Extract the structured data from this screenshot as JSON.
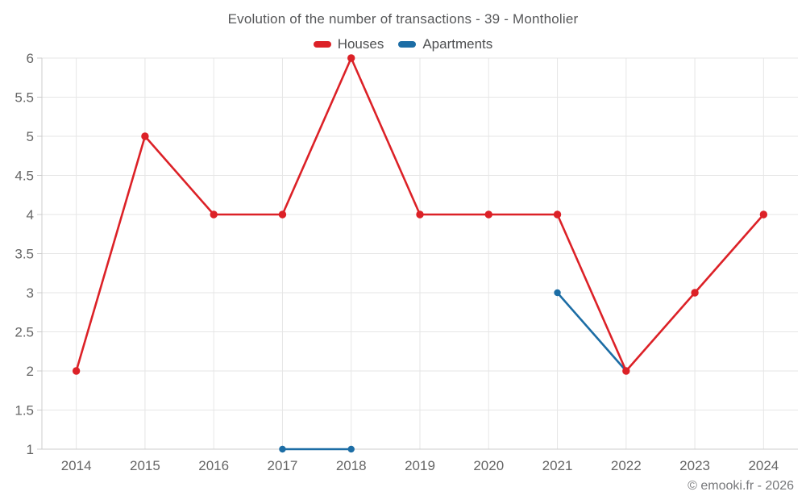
{
  "chart_data": {
    "type": "line",
    "title": "Evolution of the number of transactions - 39 - Montholier",
    "categories": [
      "2014",
      "2015",
      "2016",
      "2017",
      "2018",
      "2019",
      "2020",
      "2021",
      "2022",
      "2023",
      "2024"
    ],
    "series": [
      {
        "name": "Houses",
        "color": "#dc2127",
        "values": [
          2,
          5,
          4,
          4,
          6,
          4,
          4,
          4,
          2,
          3,
          4
        ]
      },
      {
        "name": "Apartments",
        "color": "#1c6da5",
        "values": [
          null,
          null,
          null,
          1,
          1,
          null,
          null,
          3,
          2,
          null,
          null
        ]
      }
    ],
    "xlabel": "",
    "ylabel": "",
    "ylim": [
      1,
      6
    ],
    "ytick_step": 0.5,
    "yticks": [
      1,
      1.5,
      2,
      2.5,
      3,
      3.5,
      4,
      4.5,
      5,
      5.5,
      6
    ],
    "grid": true,
    "legend_position": "top"
  },
  "watermark": "© emooki.fr - 2026",
  "colors": {
    "background": "#ffffff",
    "grid": "#e6e6e6",
    "axis": "#cccccc",
    "axis_label": "#666666",
    "title": "#565759",
    "legend_text": "#4e4f51",
    "watermark": "#76777a"
  }
}
